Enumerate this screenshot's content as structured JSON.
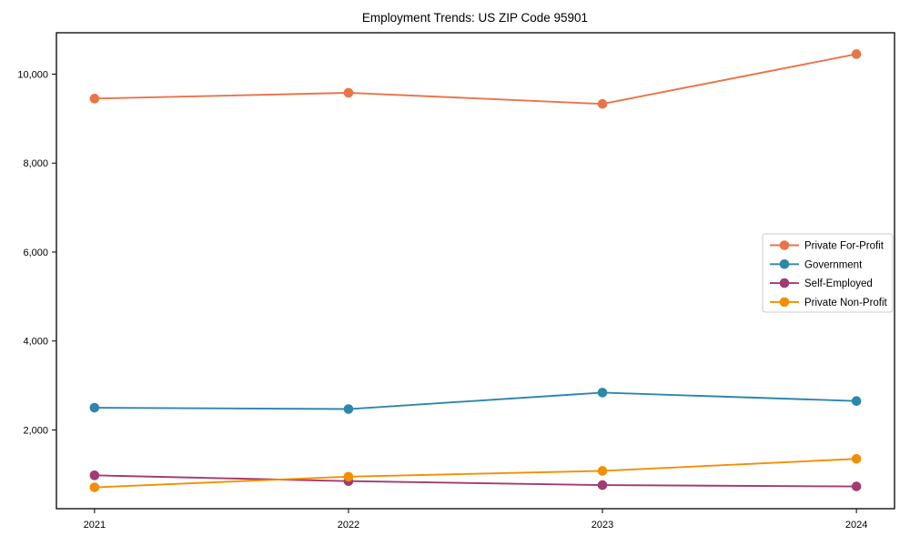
{
  "chart_data": {
    "type": "line",
    "title": "Employment Trends: US ZIP Code 95901",
    "x": [
      2021,
      2022,
      2023,
      2024
    ],
    "x_labels": [
      "2021",
      "2022",
      "2023",
      "2024"
    ],
    "series": [
      {
        "name": "Private For-Profit",
        "color": "#E8744A",
        "values": [
          9450,
          9580,
          9330,
          10450
        ]
      },
      {
        "name": "Government",
        "color": "#2E86AB",
        "values": [
          2500,
          2470,
          2840,
          2650
        ]
      },
      {
        "name": "Self-Employed",
        "color": "#A23B72",
        "values": [
          980,
          850,
          760,
          730
        ]
      },
      {
        "name": "Private Non-Profit",
        "color": "#F18F01",
        "values": [
          710,
          950,
          1080,
          1350
        ]
      }
    ],
    "xlabel": "",
    "ylabel": "",
    "xlim": [
      2020.85,
      2024.15
    ],
    "ylim": [
      230,
      10930
    ],
    "yticks": [
      2000,
      4000,
      6000,
      8000,
      10000
    ],
    "ytick_labels": [
      "2,000",
      "4,000",
      "6,000",
      "8,000",
      "10,000"
    ],
    "grid": false,
    "legend_position": "center-right",
    "marker": "circle",
    "axis_color": "#000000",
    "background_color": "#ffffff",
    "legend_border_color": "#cccccc"
  }
}
